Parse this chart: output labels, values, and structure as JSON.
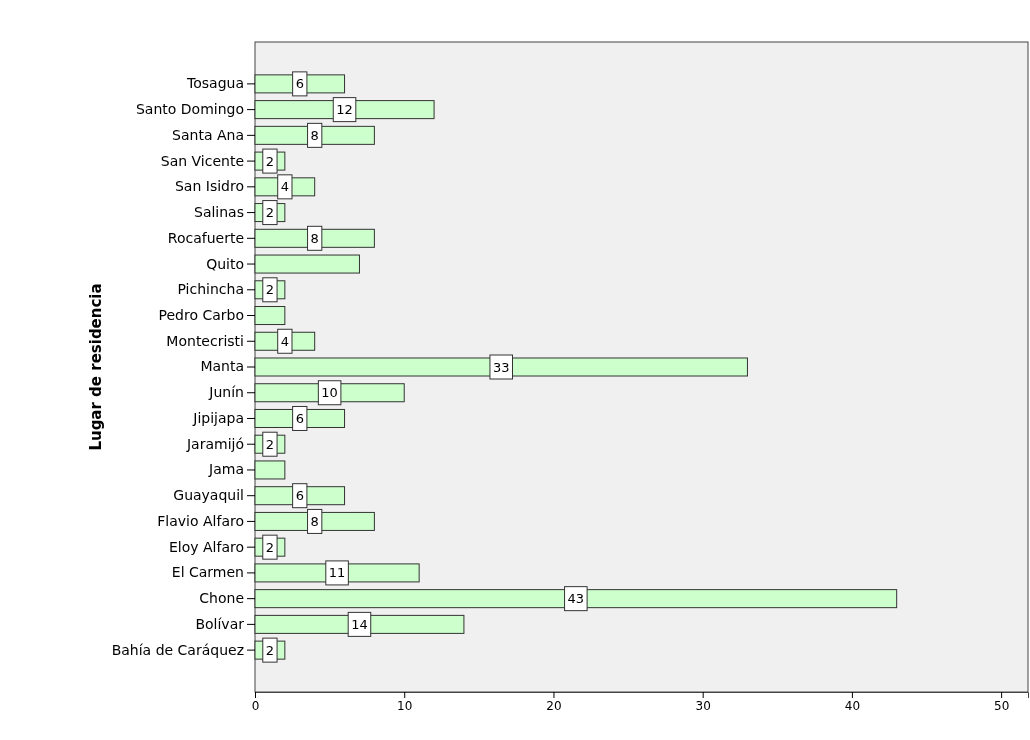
{
  "chart_data": {
    "type": "bar",
    "orientation": "horizontal",
    "ylabel": "Lugar de residencia",
    "categories": [
      "Tosagua",
      "Santo Domingo",
      "Santa Ana",
      "San Vicente",
      "San Isidro",
      "Salinas",
      "Rocafuerte",
      "Quito",
      "Pichincha",
      "Pedro Carbo",
      "Montecristi",
      "Manta",
      "Junín",
      "Jipijapa",
      "Jaramijó",
      "Jama",
      "Guayaquil",
      "Flavio Alfaro",
      "Eloy Alfaro",
      "El Carmen",
      "Chone",
      "Bolívar",
      "Bahía de Caráquez"
    ],
    "values": [
      6,
      12,
      8,
      2,
      4,
      2,
      8,
      7,
      2,
      2,
      4,
      33,
      10,
      6,
      2,
      2,
      6,
      8,
      2,
      11,
      43,
      14,
      2
    ],
    "value_labels": [
      "6",
      "12",
      "8",
      "2",
      "4",
      "2",
      "8",
      null,
      "2",
      null,
      "4",
      "33",
      "10",
      "6",
      "2",
      null,
      "6",
      "8",
      "2",
      "11",
      "43",
      "14",
      "2"
    ],
    "color": "#ccffcc",
    "xlim": [
      0,
      51.8
    ],
    "xticks": [
      0,
      10,
      20,
      30,
      40,
      50
    ],
    "grid": false
  }
}
